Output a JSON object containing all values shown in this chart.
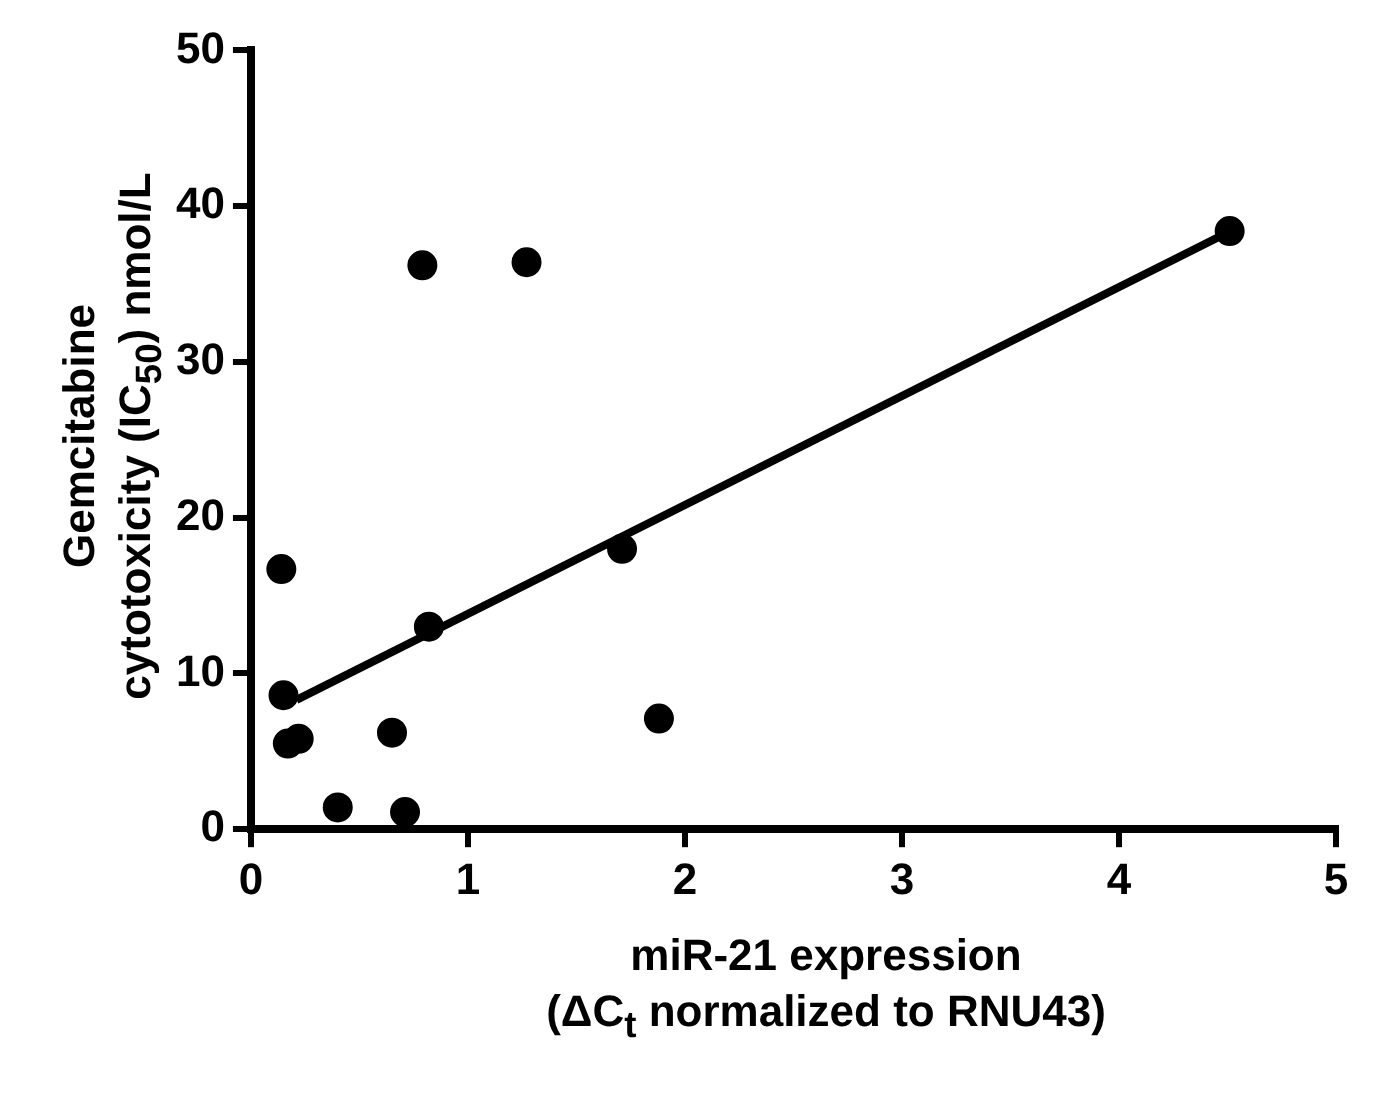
{
  "chart_data": {
    "type": "scatter",
    "xlabel": "miR-21 expression\n(ΔC$_{t}$ normalized to RNU43)",
    "ylabel": "Gemcitabine\ncytotoxicity (IC$_{50}$) nmol/L",
    "series": [
      {
        "marker": "circle",
        "color": "#000000",
        "x": [
          0.14,
          0.15,
          0.17,
          0.22,
          0.4,
          0.65,
          0.71,
          0.79,
          0.82,
          1.27,
          1.71,
          1.88,
          4.51
        ],
        "values": [
          16.7,
          8.6,
          5.5,
          5.8,
          1.4,
          6.2,
          1.1,
          36.2,
          13.0,
          36.4,
          18.0,
          7.1,
          38.4
        ]
      },
      {
        "type": "line",
        "marker": "none",
        "color": "#000000",
        "x": [
          0.21,
          4.5
        ],
        "values": [
          8.3,
          38.3
        ]
      }
    ],
    "xlim": [
      0,
      5
    ],
    "xticks": [
      0,
      1,
      2,
      3,
      4,
      5
    ],
    "ylim": [
      0,
      50
    ],
    "yticks": [
      0,
      10,
      20,
      30,
      40,
      50
    ],
    "grid": false,
    "legend": false,
    "line_style": "solid"
  }
}
